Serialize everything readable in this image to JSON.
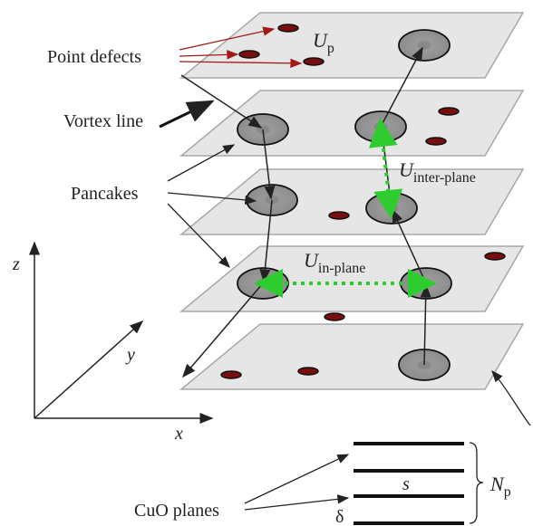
{
  "labels": {
    "point_defects": "Point defects",
    "vortex_line": "Vortex line",
    "pancakes": "Pancakes",
    "cuo_planes": "CuO planes"
  },
  "energies": {
    "u_p": {
      "symbol": "U",
      "subscript": "p"
    },
    "u_inter": {
      "symbol": "U",
      "subscript": "inter-plane"
    },
    "u_in": {
      "symbol": "U",
      "subscript": "in-plane"
    }
  },
  "axes": {
    "x": "x",
    "y": "y",
    "z": "z"
  },
  "stack": {
    "spacing": "s",
    "thickness": "δ",
    "count": {
      "symbol": "N",
      "subscript": "p"
    }
  }
}
